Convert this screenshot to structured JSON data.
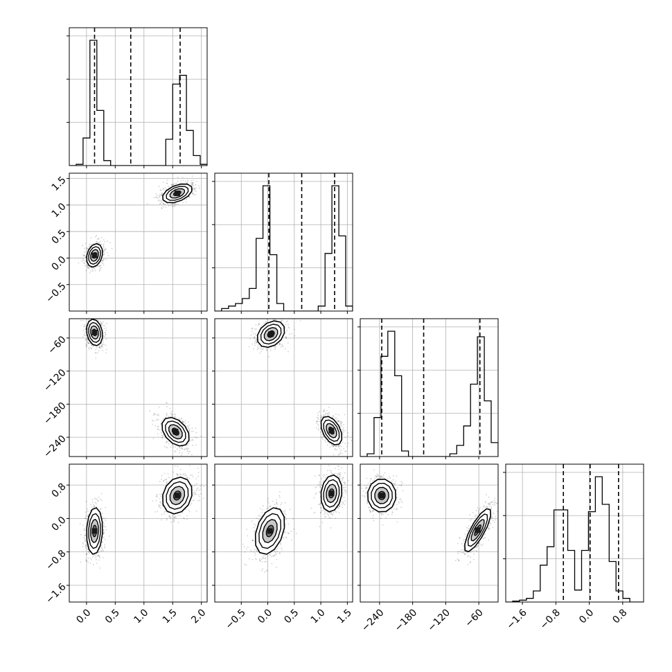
{
  "chart_data": {
    "type": "corner",
    "n_params": 4,
    "grid": true,
    "panel_tick_labels": {
      "x": [
        [
          "0.0",
          "0.5",
          "1.0",
          "1.5",
          "2.0"
        ],
        [
          "−0.5",
          "0.0",
          "0.5",
          "1.0",
          "1.5"
        ],
        [
          "−240",
          "−180",
          "−120",
          "−60"
        ],
        [
          "−1.6",
          "−0.8",
          "0.0",
          "0.8"
        ]
      ],
      "y": [
        [],
        [
          "−0.5",
          "0.0",
          "0.5",
          "1.0",
          "1.5"
        ],
        [
          "−240",
          "−180",
          "−120",
          "−60"
        ],
        [
          "−1.6",
          "−0.8",
          "0.0",
          "0.8"
        ]
      ]
    },
    "params": [
      {
        "range": [
          -0.3,
          2.1
        ],
        "ticks": [
          0.0,
          0.5,
          1.0,
          1.5,
          2.0
        ],
        "quantiles": [
          0.14,
          0.77,
          1.63
        ],
        "hist": {
          "edges": [
            -0.3,
            -0.18,
            -0.06,
            0.06,
            0.18,
            0.3,
            0.42,
            0.54,
            0.66,
            0.78,
            0.9,
            1.02,
            1.14,
            1.26,
            1.38,
            1.5,
            1.62,
            1.74,
            1.86,
            1.98,
            2.1
          ],
          "counts": [
            0.0,
            0.01,
            0.22,
            1.0,
            0.44,
            0.04,
            0.0,
            0.0,
            0.0,
            0.0,
            0.0,
            0.0,
            0.0,
            0.0,
            0.21,
            0.65,
            0.72,
            0.28,
            0.08,
            0.01
          ]
        }
      },
      {
        "range": [
          -1.0,
          1.6
        ],
        "ticks": [
          -0.5,
          0.0,
          0.5,
          1.0,
          1.5
        ],
        "quantiles": [
          0.02,
          0.64,
          1.26
        ],
        "hist": {
          "edges": [
            -1.0,
            -0.87,
            -0.74,
            -0.61,
            -0.48,
            -0.35,
            -0.22,
            -0.09,
            0.04,
            0.17,
            0.3,
            0.43,
            0.56,
            0.69,
            0.82,
            0.95,
            1.08,
            1.21,
            1.34,
            1.47,
            1.6
          ],
          "counts": [
            0.0,
            0.02,
            0.04,
            0.06,
            0.1,
            0.18,
            0.58,
            1.0,
            0.45,
            0.06,
            0.0,
            0.0,
            0.0,
            0.0,
            0.0,
            0.04,
            0.46,
            1.0,
            0.6,
            0.04
          ]
        }
      },
      {
        "range": [
          -275,
          -25
        ],
        "ticks": [
          -240,
          -180,
          -120,
          -60
        ],
        "quantiles": [
          -236,
          -160,
          -58
        ],
        "hist": {
          "edges": [
            -275.0,
            -262.5,
            -250.0,
            -237.5,
            -225.0,
            -212.5,
            -200.0,
            -187.5,
            -175.0,
            -162.5,
            -150.0,
            -137.5,
            -125.0,
            -112.5,
            -100.0,
            -87.5,
            -75.0,
            -62.5,
            -50.0,
            -37.5,
            -25.0
          ],
          "counts": [
            0.0,
            0.02,
            0.28,
            0.72,
            0.9,
            0.58,
            0.04,
            0.0,
            0.0,
            0.0,
            0.0,
            0.0,
            0.0,
            0.02,
            0.08,
            0.22,
            0.52,
            0.86,
            0.4,
            0.1
          ]
        }
      },
      {
        "range": [
          -2.0,
          1.3
        ],
        "ticks": [
          -1.6,
          -0.8,
          0.0,
          0.8
        ],
        "quantiles": [
          -0.62,
          0.02,
          0.7
        ],
        "hist": {
          "edges": [
            -2.0,
            -1.835,
            -1.67,
            -1.505,
            -1.34,
            -1.175,
            -1.01,
            -0.845,
            -0.68,
            -0.515,
            -0.35,
            -0.185,
            -0.02,
            0.145,
            0.31,
            0.475,
            0.64,
            0.805,
            0.97,
            1.135,
            1.3
          ],
          "counts": [
            0.0,
            0.01,
            0.02,
            0.04,
            0.12,
            0.4,
            0.6,
            1.0,
            1.0,
            0.56,
            0.13,
            0.56,
            0.98,
            1.36,
            1.06,
            0.44,
            0.12,
            0.04,
            0.0,
            0.0
          ]
        }
      }
    ],
    "pairs": [
      {
        "row": 1,
        "col": 0,
        "modes": [
          {
            "mean": [
              0.14,
              0.05
            ],
            "sd": [
              0.07,
              0.11
            ],
            "rho": 0.25,
            "weight": 0.5
          },
          {
            "mean": [
              1.58,
              1.22
            ],
            "sd": [
              0.13,
              0.09
            ],
            "rho": 0.45,
            "weight": 0.5
          }
        ]
      },
      {
        "row": 2,
        "col": 0,
        "modes": [
          {
            "mean": [
              0.14,
              -50
            ],
            "sd": [
              0.07,
              12
            ],
            "rho": -0.2,
            "weight": 0.5
          },
          {
            "mean": [
              1.55,
              -230
            ],
            "sd": [
              0.12,
              13
            ],
            "rho": -0.4,
            "weight": 0.5
          }
        ]
      },
      {
        "row": 2,
        "col": 1,
        "modes": [
          {
            "mean": [
              0.06,
              -53
            ],
            "sd": [
              0.13,
              12
            ],
            "rho": 0.3,
            "weight": 0.5
          },
          {
            "mean": [
              1.2,
              -228
            ],
            "sd": [
              0.1,
              13
            ],
            "rho": -0.45,
            "weight": 0.5
          }
        ]
      },
      {
        "row": 3,
        "col": 0,
        "modes": [
          {
            "mean": [
              0.14,
              -0.3
            ],
            "sd": [
              0.07,
              0.28
            ],
            "rho": 0.1,
            "weight": 0.5
          },
          {
            "mean": [
              1.58,
              0.55
            ],
            "sd": [
              0.13,
              0.22
            ],
            "rho": 0.2,
            "weight": 0.5
          }
        ]
      },
      {
        "row": 3,
        "col": 1,
        "modes": [
          {
            "mean": [
              0.04,
              -0.3
            ],
            "sd": [
              0.14,
              0.28
            ],
            "rho": 0.35,
            "weight": 0.5
          },
          {
            "mean": [
              1.2,
              0.6
            ],
            "sd": [
              0.1,
              0.22
            ],
            "rho": 0.15,
            "weight": 0.5
          }
        ]
      },
      {
        "row": 3,
        "col": 2,
        "modes": [
          {
            "mean": [
              -236,
              0.55
            ],
            "sd": [
              13,
              0.2
            ],
            "rho": 0.0,
            "weight": 0.5
          },
          {
            "mean": [
              -62,
              -0.28
            ],
            "sd": [
              12,
              0.26
            ],
            "rho": 0.8,
            "weight": 0.5
          }
        ]
      }
    ]
  }
}
